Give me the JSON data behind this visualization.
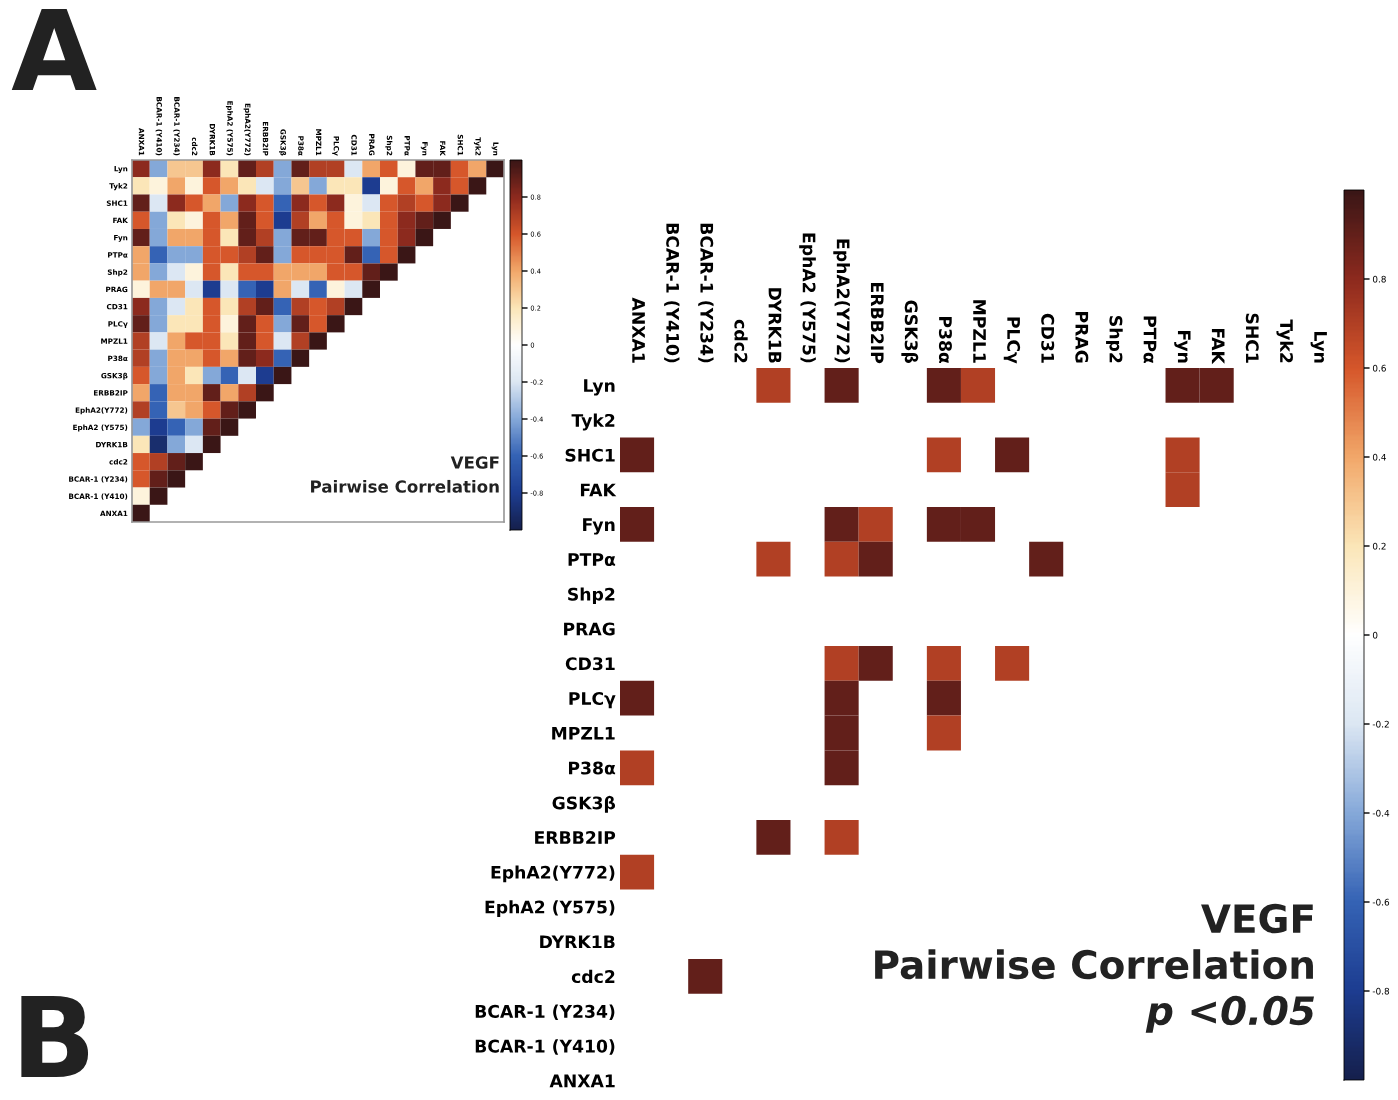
{
  "chart_data": [
    {
      "type": "heatmap",
      "annotations": [
        "A",
        "VEGF",
        "Pairwise Correlation"
      ],
      "categories": [
        "ANXA1",
        "BCAR-1 (Y410)",
        "BCAR-1 (Y234)",
        "cdc2",
        "DYRK1B",
        "EphA2 (Y575)",
        "EphA2(Y772)",
        "ERBB2IP",
        "GSK3β",
        "P38α",
        "MPZL1",
        "PLCγ",
        "CD31",
        "PRAG",
        "Shp2",
        "PTPα",
        "Fyn",
        "FAK",
        "SHC1",
        "Tyk2",
        "Lyn"
      ],
      "y_categories": [
        "Lyn",
        "Tyk2",
        "SHC1",
        "FAK",
        "Fyn",
        "PTPα",
        "Shp2",
        "PRAG",
        "CD31",
        "PLCγ",
        "MPZL1",
        "P38α",
        "GSK3β",
        "ERBB2IP",
        "EphA2(Y772)",
        "EphA2 (Y575)",
        "DYRK1B",
        "cdc2",
        "BCAR-1 (Y234)",
        "BCAR-1 (Y410)",
        "ANXA1"
      ],
      "cells": [
        [
          0.8,
          -0.4,
          0.3,
          0.3,
          0.8,
          0.2,
          0.9,
          0.7,
          -0.4,
          0.9,
          0.7,
          0.7,
          -0.2,
          0.4,
          0.6,
          0.1,
          0.9,
          0.9,
          0.6,
          0.4,
          1
        ],
        [
          0.2,
          0.1,
          0.4,
          0.1,
          0.6,
          0.4,
          0.2,
          -0.2,
          -0.4,
          0.3,
          -0.4,
          0.2,
          0.2,
          -0.8,
          0.1,
          0.6,
          0.4,
          0.8,
          0.6,
          1,
          null
        ],
        [
          0.9,
          -0.2,
          0.8,
          0.6,
          0.4,
          -0.4,
          0.8,
          0.6,
          -0.6,
          0.8,
          0.6,
          0.8,
          0.1,
          -0.2,
          0.6,
          0.7,
          0.6,
          0.8,
          1,
          null,
          null
        ],
        [
          0.6,
          -0.4,
          0.2,
          0.1,
          0.6,
          0.4,
          0.9,
          0.6,
          -0.8,
          0.7,
          0.4,
          0.6,
          0.1,
          0.2,
          0.6,
          0.8,
          0.9,
          1,
          null,
          null,
          null
        ],
        [
          0.9,
          -0.4,
          0.4,
          0.4,
          0.6,
          0.2,
          0.9,
          0.7,
          -0.4,
          0.9,
          0.9,
          0.6,
          0.6,
          -0.4,
          0.6,
          0.8,
          1,
          null,
          null,
          null,
          null
        ],
        [
          0.4,
          -0.6,
          -0.4,
          -0.4,
          0.6,
          0.6,
          0.7,
          0.9,
          -0.4,
          0.6,
          0.6,
          0.6,
          0.9,
          -0.6,
          0.6,
          1,
          null,
          null,
          null,
          null,
          null
        ],
        [
          0.4,
          -0.4,
          -0.2,
          0.1,
          0.6,
          0.2,
          0.6,
          0.6,
          0.4,
          0.4,
          0.4,
          0.6,
          0.6,
          0.9,
          1,
          null,
          null,
          null,
          null,
          null,
          null
        ],
        [
          0.1,
          0.4,
          0.4,
          -0.2,
          -0.8,
          -0.2,
          -0.6,
          -0.8,
          0.4,
          -0.2,
          -0.6,
          0.1,
          -0.2,
          1,
          null,
          null,
          null,
          null,
          null,
          null,
          null
        ],
        [
          0.8,
          -0.4,
          -0.2,
          0.2,
          0.6,
          0.2,
          0.7,
          0.9,
          -0.6,
          0.7,
          0.6,
          0.7,
          1,
          null,
          null,
          null,
          null,
          null,
          null,
          null,
          null
        ],
        [
          0.9,
          -0.4,
          0.2,
          0.2,
          0.6,
          0.1,
          0.9,
          0.6,
          -0.4,
          0.9,
          0.6,
          1,
          null,
          null,
          null,
          null,
          null,
          null,
          null,
          null,
          null
        ],
        [
          0.7,
          -0.2,
          0.4,
          0.6,
          0.6,
          0.2,
          0.9,
          0.6,
          -0.2,
          0.7,
          1,
          null,
          null,
          null,
          null,
          null,
          null,
          null,
          null,
          null,
          null
        ],
        [
          0.7,
          -0.4,
          0.4,
          0.4,
          0.6,
          0.4,
          0.9,
          0.8,
          -0.6,
          1,
          null,
          null,
          null,
          null,
          null,
          null,
          null,
          null,
          null,
          null,
          null
        ],
        [
          0.6,
          -0.4,
          0.4,
          0.2,
          -0.4,
          -0.6,
          -0.2,
          -0.8,
          1,
          null,
          null,
          null,
          null,
          null,
          null,
          null,
          null,
          null,
          null,
          null,
          null
        ],
        [
          0.4,
          -0.6,
          0.4,
          0.4,
          0.9,
          0.4,
          0.7,
          1,
          null,
          null,
          null,
          null,
          null,
          null,
          null,
          null,
          null,
          null,
          null,
          null,
          null
        ],
        [
          0.7,
          -0.6,
          0.3,
          0.4,
          0.6,
          0.9,
          1,
          null,
          null,
          null,
          null,
          null,
          null,
          null,
          null,
          null,
          null,
          null,
          null,
          null,
          null
        ],
        [
          -0.4,
          -0.8,
          -0.6,
          -0.4,
          0.9,
          1,
          null,
          null,
          null,
          null,
          null,
          null,
          null,
          null,
          null,
          null,
          null,
          null,
          null,
          null,
          null
        ],
        [
          0.2,
          -0.9,
          -0.4,
          -0.2,
          1,
          null,
          null,
          null,
          null,
          null,
          null,
          null,
          null,
          null,
          null,
          null,
          null,
          null,
          null,
          null,
          null
        ],
        [
          0.6,
          0.7,
          0.9,
          1,
          null,
          null,
          null,
          null,
          null,
          null,
          null,
          null,
          null,
          null,
          null,
          null,
          null,
          null,
          null,
          null,
          null
        ],
        [
          0.6,
          0.9,
          1,
          null,
          null,
          null,
          null,
          null,
          null,
          null,
          null,
          null,
          null,
          null,
          null,
          null,
          null,
          null,
          null,
          null,
          null
        ],
        [
          0.1,
          1,
          null,
          null,
          null,
          null,
          null,
          null,
          null,
          null,
          null,
          null,
          null,
          null,
          null,
          null,
          null,
          null,
          null,
          null,
          null
        ],
        [
          1,
          null,
          null,
          null,
          null,
          null,
          null,
          null,
          null,
          null,
          null,
          null,
          null,
          null,
          null,
          null,
          null,
          null,
          null,
          null,
          null
        ]
      ],
      "clim": [
        -1,
        1
      ],
      "cticks": [
        0.8,
        0.6,
        0.4,
        0.2,
        0,
        -0.2,
        -0.4,
        -0.6,
        -0.8
      ]
    },
    {
      "type": "heatmap",
      "annotations": [
        "B",
        "VEGF",
        "Pairwise Correlation",
        "p <0.05"
      ],
      "categories": [
        "ANXA1",
        "BCAR-1 (Y410)",
        "BCAR-1 (Y234)",
        "cdc2",
        "DYRK1B",
        "EphA2 (Y575)",
        "EphA2(Y772)",
        "ERBB2IP",
        "GSK3β",
        "P38α",
        "MPZL1",
        "PLCγ",
        "CD31",
        "PRAG",
        "Shp2",
        "PTPα",
        "Fyn",
        "FAK",
        "SHC1",
        "Tyk2",
        "Lyn"
      ],
      "y_categories": [
        "Lyn",
        "Tyk2",
        "SHC1",
        "FAK",
        "Fyn",
        "PTPα",
        "Shp2",
        "PRAG",
        "CD31",
        "PLCγ",
        "MPZL1",
        "P38α",
        "GSK3β",
        "ERBB2IP",
        "EphA2(Y772)",
        "EphA2 (Y575)",
        "DYRK1B",
        "cdc2",
        "BCAR-1 (Y234)",
        "BCAR-1 (Y410)",
        "ANXA1"
      ],
      "cells": [
        [
          null,
          null,
          null,
          null,
          0.7,
          null,
          0.9,
          null,
          null,
          0.9,
          0.7,
          null,
          null,
          null,
          null,
          null,
          0.9,
          0.9,
          null,
          null,
          null
        ],
        [
          null,
          null,
          null,
          null,
          null,
          null,
          null,
          null,
          null,
          null,
          null,
          null,
          null,
          null,
          null,
          null,
          null,
          null,
          null,
          null,
          null
        ],
        [
          0.9,
          null,
          null,
          null,
          null,
          null,
          null,
          null,
          null,
          0.7,
          null,
          0.9,
          null,
          null,
          null,
          null,
          0.7,
          null,
          null,
          null,
          null
        ],
        [
          null,
          null,
          null,
          null,
          null,
          null,
          null,
          null,
          null,
          null,
          null,
          null,
          null,
          null,
          null,
          null,
          0.7,
          null,
          null,
          null,
          null
        ],
        [
          0.9,
          null,
          null,
          null,
          null,
          null,
          0.9,
          0.7,
          null,
          0.9,
          0.9,
          null,
          null,
          null,
          null,
          null,
          null,
          null,
          null,
          null,
          null
        ],
        [
          null,
          null,
          null,
          null,
          0.7,
          null,
          0.7,
          0.9,
          null,
          null,
          null,
          null,
          0.9,
          null,
          null,
          null,
          null,
          null,
          null,
          null,
          null
        ],
        [
          null,
          null,
          null,
          null,
          null,
          null,
          null,
          null,
          null,
          null,
          null,
          null,
          null,
          null,
          null,
          null,
          null,
          null,
          null,
          null,
          null
        ],
        [
          null,
          null,
          null,
          null,
          null,
          null,
          null,
          null,
          null,
          null,
          null,
          null,
          null,
          null,
          null,
          null,
          null,
          null,
          null,
          null,
          null
        ],
        [
          null,
          null,
          null,
          null,
          null,
          null,
          0.7,
          0.9,
          null,
          0.7,
          null,
          0.7,
          null,
          null,
          null,
          null,
          null,
          null,
          null,
          null,
          null
        ],
        [
          0.9,
          null,
          null,
          null,
          null,
          null,
          0.9,
          null,
          null,
          0.9,
          null,
          null,
          null,
          null,
          null,
          null,
          null,
          null,
          null,
          null,
          null
        ],
        [
          null,
          null,
          null,
          null,
          null,
          null,
          0.9,
          null,
          null,
          0.7,
          null,
          null,
          null,
          null,
          null,
          null,
          null,
          null,
          null,
          null,
          null
        ],
        [
          0.7,
          null,
          null,
          null,
          null,
          null,
          0.9,
          null,
          null,
          null,
          null,
          null,
          null,
          null,
          null,
          null,
          null,
          null,
          null,
          null,
          null
        ],
        [
          null,
          null,
          null,
          null,
          null,
          null,
          null,
          null,
          null,
          null,
          null,
          null,
          null,
          null,
          null,
          null,
          null,
          null,
          null,
          null,
          null
        ],
        [
          null,
          null,
          null,
          null,
          0.9,
          null,
          0.7,
          null,
          null,
          null,
          null,
          null,
          null,
          null,
          null,
          null,
          null,
          null,
          null,
          null,
          null
        ],
        [
          0.7,
          null,
          null,
          null,
          null,
          null,
          null,
          null,
          null,
          null,
          null,
          null,
          null,
          null,
          null,
          null,
          null,
          null,
          null,
          null,
          null
        ],
        [
          null,
          null,
          null,
          null,
          null,
          null,
          null,
          null,
          null,
          null,
          null,
          null,
          null,
          null,
          null,
          null,
          null,
          null,
          null,
          null,
          null
        ],
        [
          null,
          null,
          null,
          null,
          null,
          null,
          null,
          null,
          null,
          null,
          null,
          null,
          null,
          null,
          null,
          null,
          null,
          null,
          null,
          null,
          null
        ],
        [
          null,
          null,
          0.9,
          null,
          null,
          null,
          null,
          null,
          null,
          null,
          null,
          null,
          null,
          null,
          null,
          null,
          null,
          null,
          null,
          null,
          null
        ],
        [
          null,
          null,
          null,
          null,
          null,
          null,
          null,
          null,
          null,
          null,
          null,
          null,
          null,
          null,
          null,
          null,
          null,
          null,
          null,
          null,
          null
        ],
        [
          null,
          null,
          null,
          null,
          null,
          null,
          null,
          null,
          null,
          null,
          null,
          null,
          null,
          null,
          null,
          null,
          null,
          null,
          null,
          null,
          null
        ],
        [
          null,
          null,
          null,
          null,
          null,
          null,
          null,
          null,
          null,
          null,
          null,
          null,
          null,
          null,
          null,
          null,
          null,
          null,
          null,
          null,
          null
        ]
      ],
      "clim": [
        -1,
        1
      ],
      "cticks": [
        0.8,
        0.6,
        0.4,
        0.2,
        0,
        -0.2,
        -0.4,
        -0.6,
        -0.8
      ]
    }
  ]
}
